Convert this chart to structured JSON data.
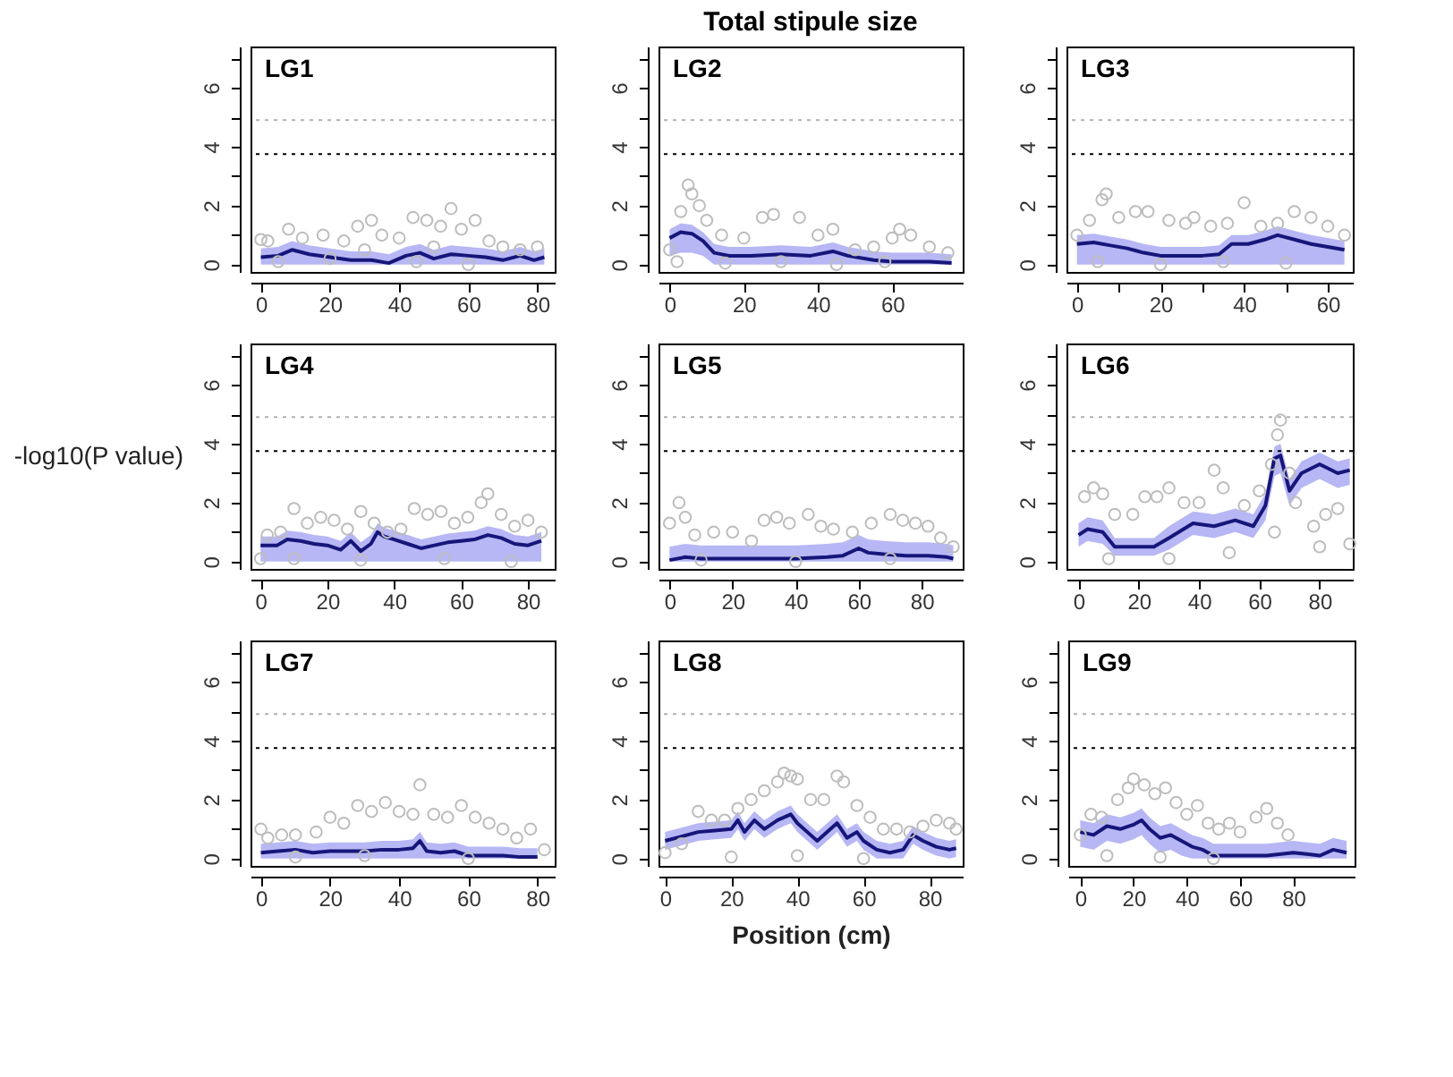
{
  "chart_data": [
    {
      "type": "scatter",
      "title": "LG1",
      "xlim": [
        -3,
        85
      ],
      "ylim": [
        -0.25,
        7.4
      ],
      "xticks": [
        0,
        20,
        40,
        60,
        80
      ],
      "yticks": [
        0,
        {
          "value": 1,
          "label": null
        },
        2,
        {
          "value": 3,
          "label": null
        },
        4,
        {
          "value": 5,
          "label": null
        },
        6,
        {
          "value": 7,
          "label": null
        }
      ],
      "ref_lines": [
        {
          "axis": "y",
          "value": 3.75,
          "color": "#000000",
          "line_style": "dotted"
        },
        {
          "axis": "y",
          "value": 4.9,
          "color": "#b0b0b0",
          "line_style": "dotted"
        }
      ],
      "series": [
        {
          "marker": "circle",
          "color": "#bdbdbd",
          "x": [
            0,
            2,
            8,
            12,
            18,
            24,
            28,
            32,
            35,
            40,
            44,
            48,
            52,
            55,
            58,
            62,
            66,
            70,
            75,
            80,
            5,
            20,
            45,
            60,
            30,
            50
          ],
          "values": [
            0.85,
            0.8,
            1.2,
            0.9,
            1.0,
            0.8,
            1.3,
            1.5,
            1.0,
            0.9,
            1.6,
            1.5,
            1.3,
            1.9,
            1.2,
            1.5,
            0.8,
            0.6,
            0.5,
            0.6,
            0.1,
            0.2,
            0.1,
            0.0,
            0.5,
            0.6
          ]
        },
        {
          "type": "line",
          "color": "#16167a",
          "x": [
            0,
            5,
            9,
            14,
            20,
            26,
            32,
            37,
            42,
            46,
            50,
            55,
            60,
            65,
            70,
            75,
            79,
            82
          ],
          "values": [
            0.25,
            0.3,
            0.5,
            0.35,
            0.25,
            0.15,
            0.15,
            0.05,
            0.3,
            0.4,
            0.2,
            0.35,
            0.3,
            0.25,
            0.15,
            0.3,
            0.15,
            0.25
          ],
          "lower": [
            0,
            0,
            0,
            0,
            0,
            0,
            0,
            0,
            0,
            0,
            0,
            0,
            0,
            0,
            0,
            0,
            0,
            0
          ],
          "upper": [
            0.55,
            0.6,
            0.8,
            0.65,
            0.55,
            0.45,
            0.45,
            0.35,
            0.6,
            0.7,
            0.5,
            0.65,
            0.6,
            0.55,
            0.45,
            0.6,
            0.45,
            0.55
          ]
        }
      ]
    },
    {
      "type": "scatter",
      "title": "LG2",
      "annotations": [
        "Total stipule size"
      ],
      "xlim": [
        -3,
        79
      ],
      "ylim": [
        -0.25,
        7.4
      ],
      "xticks": [
        0,
        20,
        40,
        60
      ],
      "yticks": [
        0,
        {
          "value": 1,
          "label": null
        },
        2,
        {
          "value": 3,
          "label": null
        },
        4,
        {
          "value": 5,
          "label": null
        },
        6,
        {
          "value": 7,
          "label": null
        }
      ],
      "ref_lines": [
        {
          "axis": "y",
          "value": 3.75,
          "color": "#000000",
          "line_style": "dotted"
        },
        {
          "axis": "y",
          "value": 4.9,
          "color": "#b0b0b0",
          "line_style": "dotted"
        }
      ],
      "series": [
        {
          "marker": "circle",
          "color": "#bdbdbd",
          "x": [
            0,
            3,
            5,
            6,
            8,
            10,
            14,
            20,
            25,
            28,
            35,
            40,
            44,
            50,
            55,
            60,
            62,
            65,
            70,
            75,
            2,
            15,
            30,
            45,
            58
          ],
          "values": [
            0.5,
            1.8,
            2.7,
            2.4,
            2.0,
            1.5,
            1.0,
            0.9,
            1.6,
            1.7,
            1.6,
            1.0,
            1.2,
            0.5,
            0.6,
            0.9,
            1.2,
            1.0,
            0.6,
            0.4,
            0.1,
            0.05,
            0.1,
            0.0,
            0.1
          ]
        },
        {
          "type": "line",
          "color": "#16167a",
          "x": [
            0,
            3,
            6,
            9,
            12,
            16,
            22,
            30,
            38,
            44,
            48,
            55,
            60,
            66,
            70,
            76
          ],
          "values": [
            0.9,
            1.1,
            1.05,
            0.8,
            0.4,
            0.3,
            0.3,
            0.35,
            0.3,
            0.45,
            0.3,
            0.15,
            0.1,
            0.1,
            0.1,
            0.05
          ],
          "lower": [
            0.3,
            0.4,
            0.4,
            0.3,
            0,
            0,
            0,
            0,
            0,
            0,
            0,
            0,
            0,
            0,
            0,
            0
          ],
          "upper": [
            1.2,
            1.4,
            1.35,
            1.1,
            0.7,
            0.6,
            0.6,
            0.65,
            0.6,
            0.75,
            0.6,
            0.45,
            0.4,
            0.4,
            0.4,
            0.35
          ]
        }
      ]
    },
    {
      "type": "scatter",
      "title": "LG3",
      "xlim": [
        -2.5,
        66
      ],
      "ylim": [
        -0.25,
        7.4
      ],
      "xticks": [
        0,
        {
          "value": 10,
          "label": null
        },
        20,
        {
          "value": 30,
          "label": null
        },
        40,
        {
          "value": 50,
          "label": null
        },
        60
      ],
      "yticks": [
        0,
        {
          "value": 1,
          "label": null
        },
        2,
        {
          "value": 3,
          "label": null
        },
        4,
        {
          "value": 5,
          "label": null
        },
        6,
        {
          "value": 7,
          "label": null
        }
      ],
      "ref_lines": [
        {
          "axis": "y",
          "value": 3.75,
          "color": "#000000",
          "line_style": "dotted"
        },
        {
          "axis": "y",
          "value": 4.9,
          "color": "#b0b0b0",
          "line_style": "dotted"
        }
      ],
      "series": [
        {
          "marker": "circle",
          "color": "#bdbdbd",
          "x": [
            0,
            3,
            6,
            7,
            10,
            14,
            17,
            22,
            26,
            28,
            32,
            36,
            40,
            44,
            48,
            52,
            56,
            60,
            64,
            5,
            20,
            35,
            50
          ],
          "values": [
            1.0,
            1.5,
            2.2,
            2.4,
            1.6,
            1.8,
            1.8,
            1.5,
            1.4,
            1.6,
            1.3,
            1.4,
            2.1,
            1.3,
            1.4,
            1.8,
            1.6,
            1.3,
            1.0,
            0.1,
            0.0,
            0.1,
            0.05
          ]
        },
        {
          "type": "line",
          "color": "#16167a",
          "x": [
            0,
            4,
            8,
            12,
            16,
            20,
            25,
            30,
            34,
            37,
            41,
            45,
            48,
            52,
            56,
            60,
            64
          ],
          "values": [
            0.7,
            0.75,
            0.65,
            0.55,
            0.4,
            0.3,
            0.3,
            0.3,
            0.35,
            0.7,
            0.7,
            0.85,
            1.0,
            0.85,
            0.7,
            0.6,
            0.5
          ],
          "lower": [
            0,
            0,
            0,
            0,
            0,
            0,
            0,
            0,
            0,
            0,
            0,
            0,
            0,
            0,
            0,
            0,
            0
          ],
          "upper": [
            1.0,
            1.05,
            0.95,
            0.85,
            0.7,
            0.6,
            0.6,
            0.6,
            0.65,
            1.0,
            1.0,
            1.15,
            1.3,
            1.15,
            1.0,
            0.9,
            0.8
          ]
        }
      ]
    },
    {
      "type": "scatter",
      "title": "LG4",
      "ylabel": "-log10(P value)",
      "xlim": [
        -3,
        88
      ],
      "ylim": [
        -0.25,
        7.4
      ],
      "xticks": [
        0,
        20,
        40,
        60,
        80
      ],
      "yticks": [
        0,
        {
          "value": 1,
          "label": null
        },
        2,
        {
          "value": 3,
          "label": null
        },
        4,
        {
          "value": 5,
          "label": null
        },
        6,
        {
          "value": 7,
          "label": null
        }
      ],
      "ref_lines": [
        {
          "axis": "y",
          "value": 3.75,
          "color": "#000000",
          "line_style": "dotted"
        },
        {
          "axis": "y",
          "value": 4.9,
          "color": "#b0b0b0",
          "line_style": "dotted"
        }
      ],
      "series": [
        {
          "marker": "circle",
          "color": "#bdbdbd",
          "x": [
            0,
            2,
            6,
            10,
            14,
            18,
            22,
            26,
            30,
            34,
            38,
            42,
            46,
            50,
            54,
            58,
            62,
            66,
            68,
            72,
            76,
            80,
            84,
            10,
            30,
            55,
            75
          ],
          "values": [
            0.1,
            0.9,
            1.0,
            1.8,
            1.3,
            1.5,
            1.4,
            1.1,
            1.7,
            1.3,
            1.0,
            1.1,
            1.8,
            1.6,
            1.7,
            1.3,
            1.5,
            2.0,
            2.3,
            1.6,
            1.2,
            1.4,
            1.0,
            0.1,
            0.05,
            0.1,
            0.0
          ]
        },
        {
          "type": "line",
          "color": "#16167a",
          "x": [
            0,
            5,
            8,
            12,
            16,
            20,
            24,
            27,
            30,
            33,
            35,
            37,
            40,
            44,
            48,
            52,
            56,
            60,
            64,
            68,
            72,
            76,
            80,
            84
          ],
          "values": [
            0.55,
            0.55,
            0.75,
            0.7,
            0.6,
            0.55,
            0.4,
            0.7,
            0.35,
            0.6,
            1.0,
            0.85,
            0.75,
            0.6,
            0.45,
            0.55,
            0.65,
            0.7,
            0.75,
            0.9,
            0.8,
            0.6,
            0.55,
            0.7
          ],
          "lower": [
            0,
            0,
            0,
            0,
            0,
            0,
            0,
            0,
            0,
            0,
            0,
            0,
            0,
            0,
            0,
            0,
            0,
            0,
            0,
            0,
            0,
            0,
            0,
            0
          ],
          "upper": [
            0.85,
            0.85,
            1.05,
            1.0,
            0.9,
            0.85,
            0.7,
            1.0,
            0.65,
            0.9,
            1.3,
            1.15,
            1.05,
            0.9,
            0.75,
            0.85,
            0.95,
            1.0,
            1.05,
            1.2,
            1.1,
            0.9,
            0.85,
            1.0
          ]
        }
      ]
    },
    {
      "type": "scatter",
      "title": "LG5",
      "xlim": [
        -3.5,
        93
      ],
      "ylim": [
        -0.25,
        7.4
      ],
      "xticks": [
        0,
        20,
        40,
        60,
        80
      ],
      "yticks": [
        0,
        {
          "value": 1,
          "label": null
        },
        2,
        {
          "value": 3,
          "label": null
        },
        4,
        {
          "value": 5,
          "label": null
        },
        6,
        {
          "value": 7,
          "label": null
        }
      ],
      "ref_lines": [
        {
          "axis": "y",
          "value": 3.75,
          "color": "#000000",
          "line_style": "dotted"
        },
        {
          "axis": "y",
          "value": 4.9,
          "color": "#b0b0b0",
          "line_style": "dotted"
        }
      ],
      "series": [
        {
          "marker": "circle",
          "color": "#bdbdbd",
          "x": [
            0,
            3,
            5,
            8,
            14,
            20,
            26,
            30,
            34,
            38,
            44,
            48,
            52,
            58,
            64,
            70,
            74,
            78,
            82,
            86,
            90,
            10,
            40,
            70
          ],
          "values": [
            1.3,
            2.0,
            1.5,
            0.9,
            1.0,
            1.0,
            0.7,
            1.4,
            1.5,
            1.3,
            1.6,
            1.2,
            1.1,
            1.0,
            1.3,
            1.6,
            1.4,
            1.3,
            1.2,
            0.8,
            0.5,
            0.05,
            0.0,
            0.1
          ]
        },
        {
          "type": "line",
          "color": "#16167a",
          "x": [
            0,
            5,
            10,
            20,
            30,
            40,
            50,
            55,
            58,
            60,
            63,
            68,
            75,
            82,
            88,
            90
          ],
          "values": [
            0.05,
            0.15,
            0.1,
            0.1,
            0.1,
            0.1,
            0.15,
            0.2,
            0.35,
            0.45,
            0.3,
            0.25,
            0.2,
            0.2,
            0.15,
            0.1
          ],
          "lower": [
            0,
            0,
            0,
            0,
            0,
            0,
            0,
            0,
            0,
            0,
            0,
            0,
            0,
            0,
            0,
            0
          ],
          "upper": [
            0.5,
            0.6,
            0.55,
            0.55,
            0.55,
            0.55,
            0.6,
            0.65,
            0.8,
            0.9,
            0.75,
            0.7,
            0.65,
            0.65,
            0.6,
            0.55
          ]
        }
      ]
    },
    {
      "type": "scatter",
      "title": "LG6",
      "xlim": [
        -4,
        91
      ],
      "ylim": [
        -0.25,
        7.4
      ],
      "xticks": [
        0,
        20,
        40,
        60,
        80
      ],
      "yticks": [
        0,
        {
          "value": 1,
          "label": null
        },
        2,
        {
          "value": 3,
          "label": null
        },
        4,
        {
          "value": 5,
          "label": null
        },
        6,
        {
          "value": 7,
          "label": null
        }
      ],
      "ref_lines": [
        {
          "axis": "y",
          "value": 3.75,
          "color": "#000000",
          "line_style": "dotted"
        },
        {
          "axis": "y",
          "value": 4.9,
          "color": "#b0b0b0",
          "line_style": "dotted"
        }
      ],
      "series": [
        {
          "marker": "circle",
          "color": "#bdbdbd",
          "x": [
            2,
            5,
            8,
            12,
            18,
            22,
            26,
            30,
            35,
            40,
            45,
            48,
            55,
            60,
            64,
            66,
            67,
            70,
            72,
            78,
            82,
            86,
            90,
            10,
            30,
            50,
            65,
            80
          ],
          "values": [
            2.2,
            2.5,
            2.3,
            1.6,
            1.6,
            2.2,
            2.2,
            2.5,
            2.0,
            2.0,
            3.1,
            2.5,
            1.9,
            2.4,
            3.3,
            4.3,
            4.8,
            3.0,
            2.0,
            1.2,
            1.6,
            1.8,
            0.6,
            0.1,
            0.1,
            0.3,
            1.0,
            0.5
          ]
        },
        {
          "type": "line",
          "color": "#16167a",
          "x": [
            0,
            3,
            8,
            12,
            18,
            25,
            30,
            38,
            45,
            52,
            58,
            62,
            65,
            67,
            70,
            74,
            80,
            86,
            90
          ],
          "values": [
            0.9,
            1.1,
            1.0,
            0.5,
            0.5,
            0.5,
            0.8,
            1.3,
            1.2,
            1.4,
            1.2,
            1.9,
            3.5,
            3.6,
            2.4,
            3.0,
            3.3,
            3.0,
            3.1
          ],
          "lower": [
            0.5,
            0.7,
            0.6,
            0.2,
            0.2,
            0.2,
            0.4,
            0.9,
            0.8,
            1.0,
            0.8,
            1.4,
            2.9,
            3.0,
            1.9,
            2.5,
            2.8,
            2.5,
            2.6
          ],
          "upper": [
            1.3,
            1.5,
            1.4,
            0.8,
            0.8,
            0.8,
            1.2,
            1.7,
            1.6,
            1.8,
            1.6,
            2.3,
            3.9,
            4.0,
            2.8,
            3.4,
            3.7,
            3.4,
            3.5
          ]
        }
      ]
    },
    {
      "type": "scatter",
      "title": "LG7",
      "xlim": [
        -3,
        85
      ],
      "ylim": [
        -0.25,
        7.4
      ],
      "xticks": [
        0,
        20,
        40,
        60,
        80
      ],
      "yticks": [
        0,
        {
          "value": 1,
          "label": null
        },
        2,
        {
          "value": 3,
          "label": null
        },
        4,
        {
          "value": 5,
          "label": null
        },
        6,
        {
          "value": 7,
          "label": null
        }
      ],
      "ref_lines": [
        {
          "axis": "y",
          "value": 3.75,
          "color": "#000000",
          "line_style": "dotted"
        },
        {
          "axis": "y",
          "value": 4.9,
          "color": "#b0b0b0",
          "line_style": "dotted"
        }
      ],
      "series": [
        {
          "marker": "circle",
          "color": "#bdbdbd",
          "x": [
            0,
            2,
            6,
            10,
            16,
            20,
            24,
            28,
            32,
            36,
            40,
            44,
            46,
            50,
            54,
            58,
            62,
            66,
            70,
            74,
            78,
            82,
            10,
            30,
            60
          ],
          "values": [
            1.0,
            0.7,
            0.8,
            0.8,
            0.9,
            1.4,
            1.2,
            1.8,
            1.6,
            1.9,
            1.6,
            1.5,
            2.5,
            1.5,
            1.4,
            1.8,
            1.4,
            1.2,
            1.0,
            0.7,
            1.0,
            0.3,
            0.05,
            0.1,
            0.0
          ]
        },
        {
          "type": "line",
          "color": "#16167a",
          "x": [
            0,
            5,
            10,
            15,
            20,
            30,
            35,
            40,
            44,
            46,
            48,
            52,
            56,
            60,
            65,
            70,
            75,
            80
          ],
          "values": [
            0.2,
            0.25,
            0.3,
            0.2,
            0.25,
            0.25,
            0.3,
            0.3,
            0.35,
            0.6,
            0.25,
            0.2,
            0.25,
            0.1,
            0.1,
            0.1,
            0.05,
            0.05
          ],
          "lower": [
            0,
            0,
            0,
            0,
            0,
            0,
            0,
            0,
            0,
            0,
            0,
            0,
            0,
            0,
            0,
            0,
            0,
            0
          ],
          "upper": [
            0.5,
            0.55,
            0.6,
            0.5,
            0.55,
            0.55,
            0.6,
            0.6,
            0.65,
            0.9,
            0.55,
            0.5,
            0.55,
            0.4,
            0.4,
            0.4,
            0.35,
            0.35
          ]
        }
      ]
    },
    {
      "type": "scatter",
      "title": "LG8",
      "xlabel": "Position (cm)",
      "xlim": [
        -2,
        90
      ],
      "ylim": [
        -0.25,
        7.4
      ],
      "xticks": [
        0,
        20,
        40,
        60,
        80
      ],
      "yticks": [
        0,
        {
          "value": 1,
          "label": null
        },
        2,
        {
          "value": 3,
          "label": null
        },
        4,
        {
          "value": 5,
          "label": null
        },
        6,
        {
          "value": 7,
          "label": null
        }
      ],
      "ref_lines": [
        {
          "axis": "y",
          "value": 3.75,
          "color": "#000000",
          "line_style": "dotted"
        },
        {
          "axis": "y",
          "value": 4.9,
          "color": "#b0b0b0",
          "line_style": "dotted"
        }
      ],
      "series": [
        {
          "marker": "circle",
          "color": "#bdbdbd",
          "x": [
            0,
            5,
            10,
            14,
            18,
            22,
            26,
            30,
            34,
            36,
            38,
            40,
            44,
            48,
            52,
            54,
            58,
            62,
            66,
            70,
            74,
            78,
            82,
            86,
            88,
            20,
            40,
            60
          ],
          "values": [
            0.2,
            0.5,
            1.6,
            1.3,
            1.3,
            1.7,
            2.0,
            2.3,
            2.6,
            2.9,
            2.8,
            2.7,
            2.0,
            2.0,
            2.8,
            2.6,
            1.8,
            1.4,
            1.0,
            1.0,
            0.9,
            1.1,
            1.3,
            1.2,
            1.0,
            0.05,
            0.1,
            0.0
          ]
        },
        {
          "type": "line",
          "color": "#16167a",
          "x": [
            0,
            5,
            10,
            15,
            20,
            22,
            24,
            27,
            30,
            34,
            38,
            40,
            43,
            46,
            50,
            52,
            55,
            58,
            60,
            64,
            68,
            72,
            75,
            78,
            82,
            86,
            88
          ],
          "values": [
            0.6,
            0.75,
            0.9,
            0.95,
            1.0,
            1.3,
            0.9,
            1.3,
            1.0,
            1.3,
            1.5,
            1.2,
            0.9,
            0.6,
            1.0,
            1.2,
            0.7,
            0.9,
            0.6,
            0.3,
            0.2,
            0.3,
            0.8,
            0.6,
            0.4,
            0.3,
            0.35
          ],
          "lower": [
            0.3,
            0.45,
            0.6,
            0.65,
            0.7,
            1.0,
            0.6,
            1.0,
            0.7,
            1.0,
            1.2,
            0.9,
            0.6,
            0.3,
            0.7,
            0.9,
            0.4,
            0.6,
            0.3,
            0,
            0,
            0,
            0.5,
            0.3,
            0.1,
            0,
            0.05
          ],
          "upper": [
            0.9,
            1.05,
            1.2,
            1.25,
            1.3,
            1.6,
            1.2,
            1.6,
            1.3,
            1.6,
            1.8,
            1.5,
            1.2,
            0.9,
            1.3,
            1.5,
            1.0,
            1.2,
            0.9,
            0.6,
            0.5,
            0.6,
            1.1,
            0.9,
            0.7,
            0.6,
            0.65
          ]
        }
      ]
    },
    {
      "type": "scatter",
      "title": "LG9",
      "xlim": [
        -4.5,
        103
      ],
      "ylim": [
        -0.25,
        7.4
      ],
      "xticks": [
        0,
        20,
        40,
        60,
        80
      ],
      "yticks": [
        0,
        {
          "value": 1,
          "label": null
        },
        2,
        {
          "value": 3,
          "label": null
        },
        4,
        {
          "value": 5,
          "label": null
        },
        6,
        {
          "value": 7,
          "label": null
        }
      ],
      "ref_lines": [
        {
          "axis": "y",
          "value": 3.75,
          "color": "#000000",
          "line_style": "dotted"
        },
        {
          "axis": "y",
          "value": 4.9,
          "color": "#b0b0b0",
          "line_style": "dotted"
        }
      ],
      "series": [
        {
          "marker": "circle",
          "color": "#bdbdbd",
          "x": [
            0,
            4,
            8,
            14,
            18,
            20,
            24,
            28,
            32,
            36,
            40,
            44,
            48,
            52,
            56,
            60,
            66,
            70,
            74,
            78,
            10,
            30,
            50
          ],
          "values": [
            0.8,
            1.5,
            1.4,
            2.0,
            2.4,
            2.7,
            2.5,
            2.2,
            2.4,
            1.9,
            1.5,
            1.8,
            1.2,
            1.0,
            1.2,
            0.9,
            1.4,
            1.7,
            1.2,
            0.8,
            0.1,
            0.05,
            0.0
          ]
        },
        {
          "type": "line",
          "color": "#16167a",
          "x": [
            0,
            5,
            10,
            15,
            20,
            23,
            26,
            30,
            34,
            38,
            42,
            46,
            50,
            60,
            70,
            80,
            85,
            90,
            95,
            100
          ],
          "values": [
            0.9,
            0.8,
            1.1,
            1.0,
            1.15,
            1.3,
            1.0,
            0.7,
            0.8,
            0.6,
            0.4,
            0.3,
            0.1,
            0.1,
            0.1,
            0.2,
            0.15,
            0.1,
            0.3,
            0.2
          ],
          "lower": [
            0.4,
            0.3,
            0.6,
            0.5,
            0.65,
            0.8,
            0.5,
            0.2,
            0.3,
            0.1,
            0,
            0,
            0,
            0,
            0,
            0,
            0,
            0,
            0,
            0
          ],
          "upper": [
            1.3,
            1.2,
            1.5,
            1.4,
            1.55,
            1.7,
            1.4,
            1.1,
            1.2,
            1.0,
            0.8,
            0.7,
            0.5,
            0.5,
            0.5,
            0.6,
            0.55,
            0.5,
            0.7,
            0.6
          ]
        }
      ]
    }
  ]
}
